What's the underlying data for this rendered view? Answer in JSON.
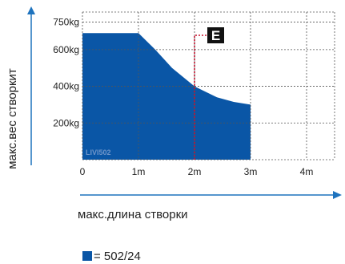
{
  "chart_data": {
    "type": "area",
    "title": "",
    "xlabel": "макс.длина створки",
    "ylabel": "макс.вес створкит",
    "x_tick_labels": [
      "0",
      "1m",
      "2m",
      "3m",
      "4m"
    ],
    "x_tick_values": [
      0,
      1,
      2,
      3,
      4
    ],
    "y_tick_labels": [
      "200kg",
      "400kg",
      "600kg",
      "750kg"
    ],
    "y_tick_values": [
      200,
      400,
      600,
      750
    ],
    "xlim": [
      0,
      4.5
    ],
    "ylim": [
      0,
      805
    ],
    "grid": true,
    "legend_position": "bottom-left",
    "colors": {
      "fill": "#0a56a6",
      "grid": "#555555",
      "axis": "#1e73be",
      "marker": "#c8102e"
    },
    "series": [
      {
        "name": "= 502/24",
        "x": [
          0,
          1.0,
          1.3,
          1.6,
          2.0,
          2.4,
          2.7,
          3.0,
          3.0
        ],
        "y": [
          690,
          690,
          600,
          500,
          400,
          340,
          315,
          300,
          0
        ]
      }
    ],
    "annotations": {
      "marker_label": "E",
      "marker_x": 2,
      "watermark": "LIVI502"
    }
  }
}
